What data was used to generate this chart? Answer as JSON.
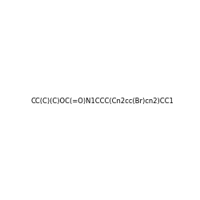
{
  "smiles": "CC(C)(C)OC(=O)N1CCC(Cn2cc(Br)cn2)CC1",
  "title": "",
  "bg_color": "#ffffff",
  "bond_color": "#000000",
  "N_color": "#0000ff",
  "O_color": "#ff0000",
  "Br_color": "#9932cc",
  "figsize": [
    2.5,
    2.5
  ],
  "dpi": 100
}
